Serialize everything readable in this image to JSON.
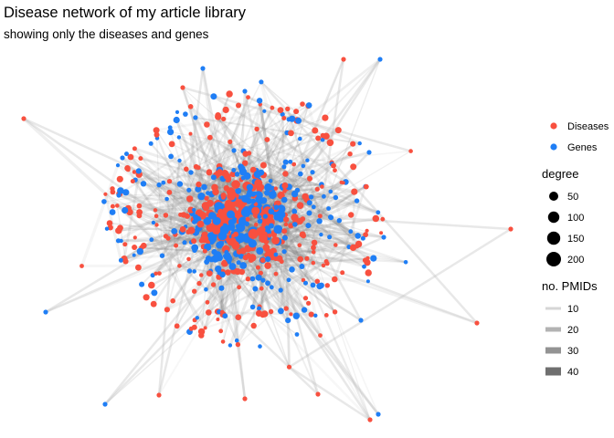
{
  "title": "Disease network of my article library",
  "subtitle": "showing only the diseases and genes",
  "colors": {
    "Diseases": "#f8503f",
    "Genes": "#1f7ef5",
    "edge": "#7a7a7a"
  },
  "legend": {
    "node_type": {
      "items": [
        "Diseases",
        "Genes"
      ]
    },
    "degree": {
      "title": "degree",
      "items": [
        "50",
        "100",
        "150",
        "200"
      ]
    },
    "pmids": {
      "title": "no. PMIDs",
      "items": [
        "10",
        "20",
        "30",
        "40"
      ]
    }
  }
}
